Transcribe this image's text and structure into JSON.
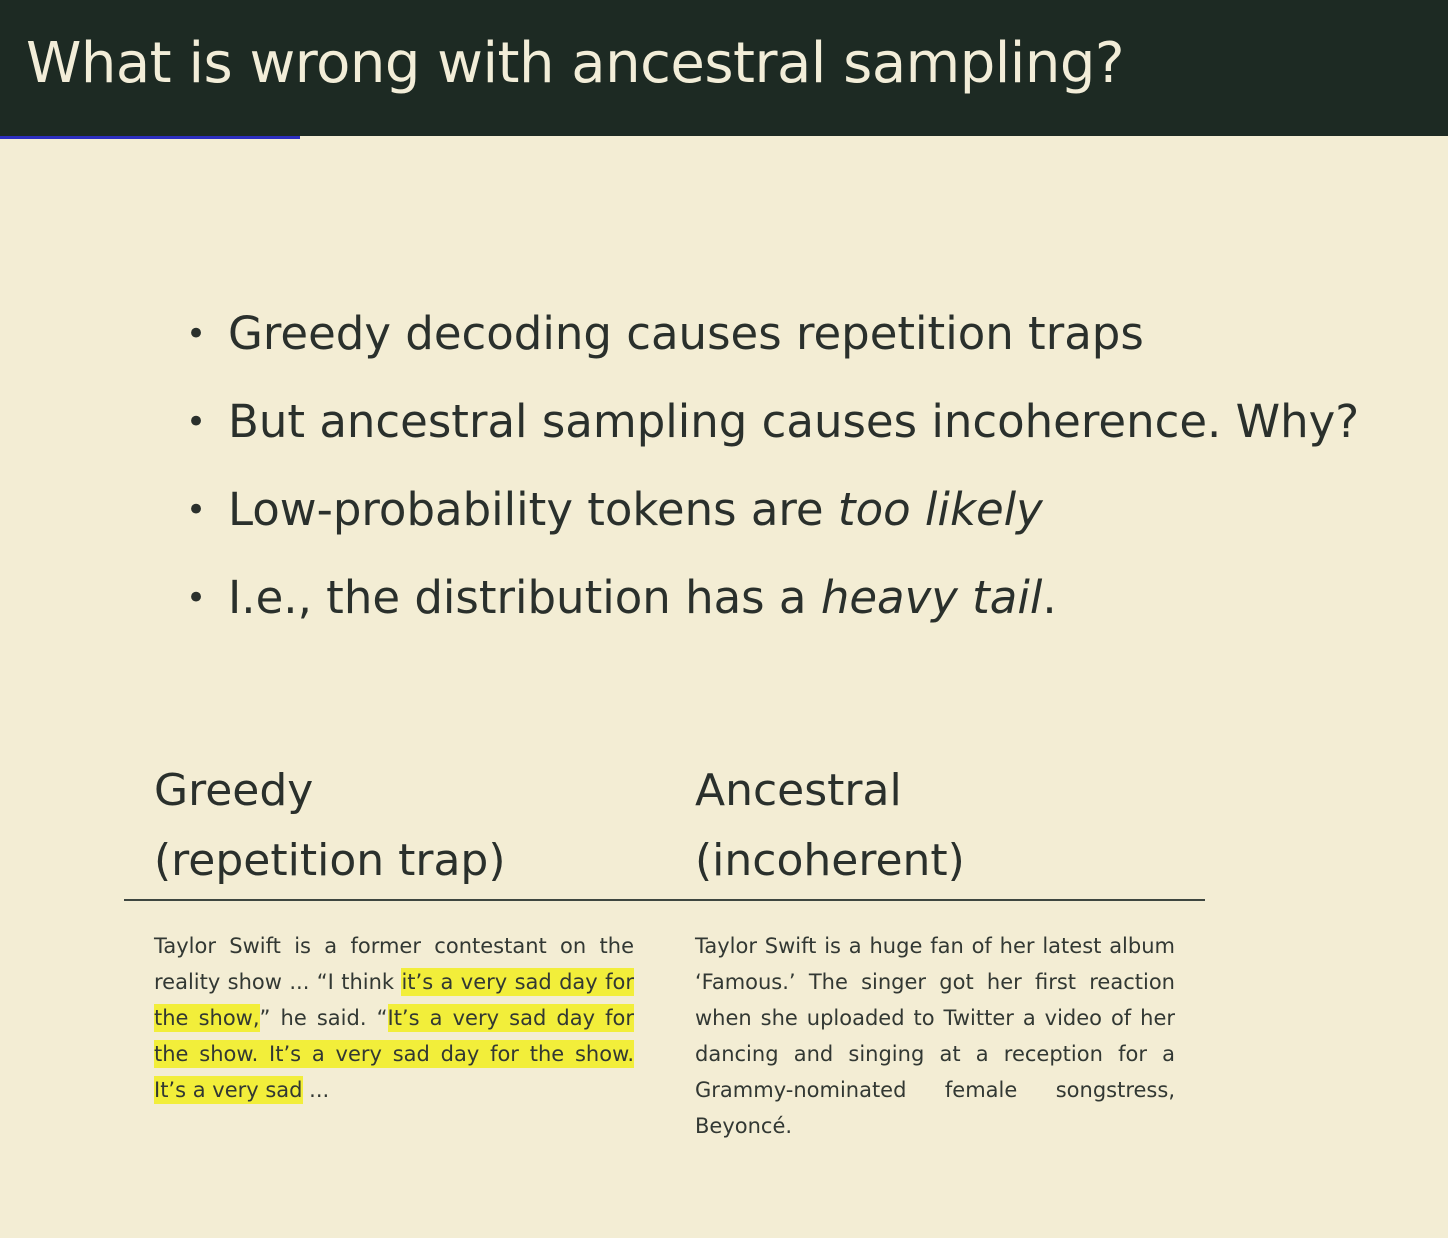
{
  "header": {
    "title": "What is wrong with ancestral sampling?"
  },
  "progress": 0.207,
  "bullets": [
    {
      "parts": [
        {
          "text": "Greedy decoding causes repetition traps",
          "italic": false
        }
      ]
    },
    {
      "parts": [
        {
          "text": "But ancestral sampling causes incoherence. Why?",
          "italic": false
        }
      ]
    },
    {
      "parts": [
        {
          "text": "Low-probability tokens are ",
          "italic": false
        },
        {
          "text": "too likely",
          "italic": true
        }
      ]
    },
    {
      "parts": [
        {
          "text": "I.e., the distribution has a ",
          "italic": false
        },
        {
          "text": "heavy tail",
          "italic": true
        },
        {
          "text": ".",
          "italic": false
        }
      ]
    }
  ],
  "columns": {
    "greedy": {
      "title": "Greedy",
      "subtitle": "(repetition trap)",
      "segments": [
        {
          "text": "Taylor Swift is a former contestant on the reality show ... “I think ",
          "highlight": false
        },
        {
          "text": "it’s a very sad day for the show,",
          "highlight": true
        },
        {
          "text": "” he said. “",
          "highlight": false
        },
        {
          "text": "It’s a very sad day for the show. It’s a very sad day for the show. It’s a very sad",
          "highlight": true
        },
        {
          "text": " ...",
          "highlight": false
        }
      ]
    },
    "ancestral": {
      "title": "Ancestral",
      "subtitle": "(incoherent)",
      "segments": [
        {
          "text": "Taylor Swift is a huge fan of her latest album ‘Famous.’ The singer got her first reaction when she uploaded to Twitter a video of her dancing and singing at a reception for a Grammy-nominated female songstress, Beyoncé.",
          "highlight": false
        }
      ]
    }
  },
  "colors": {
    "background": "#f3edd4",
    "header": "#1d2a23",
    "header_text": "#f2edd8",
    "progress": "#2d2ec0",
    "highlight": "#f2ee3a"
  }
}
